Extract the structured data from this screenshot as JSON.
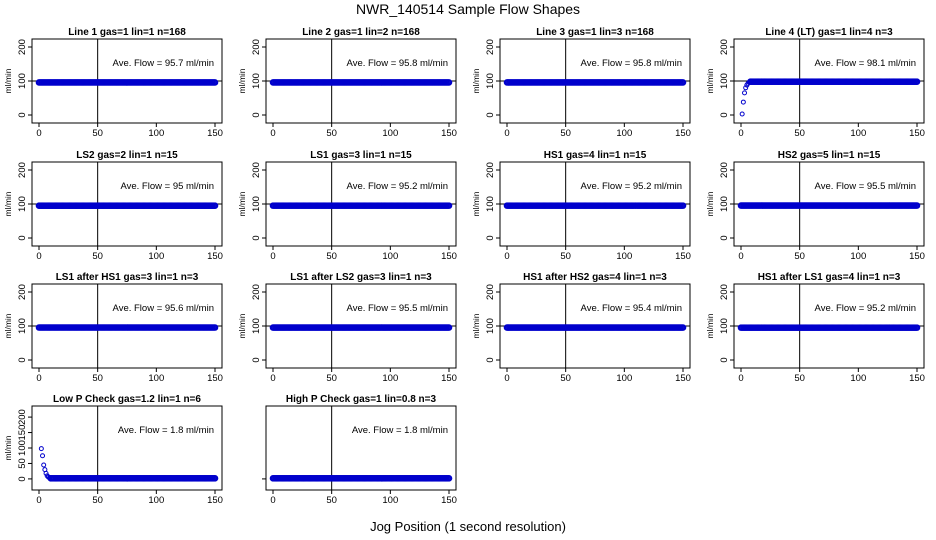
{
  "title": "NWR_140514  Sample Flow Shapes",
  "x_axis_label": "Jog Position (1 second resolution)",
  "colors": {
    "points": "#0000cc",
    "hline": "#000000",
    "vline": "#000000"
  },
  "chart_data": [
    {
      "type": "scatter",
      "title": "Line 1 gas=1 lin=1 n=168",
      "ylabel": "ml/min",
      "annotation": "Ave. Flow = 95.7  ml/min",
      "xlim": [
        0,
        150
      ],
      "ylim": [
        0,
        200
      ],
      "xticks": [
        0,
        50,
        100,
        150
      ],
      "yticks": [
        0,
        100,
        200
      ],
      "hline": 100,
      "vline": 50,
      "shape": "flat",
      "level": 95.7
    },
    {
      "type": "scatter",
      "title": "Line 2 gas=1 lin=2 n=168",
      "ylabel": "ml/min",
      "annotation": "Ave. Flow = 95.8  ml/min",
      "xlim": [
        0,
        150
      ],
      "ylim": [
        0,
        200
      ],
      "xticks": [
        0,
        50,
        100,
        150
      ],
      "yticks": [
        0,
        100,
        200
      ],
      "hline": 100,
      "vline": 50,
      "shape": "flat",
      "level": 95.8
    },
    {
      "type": "scatter",
      "title": "Line 3 gas=1 lin=3 n=168",
      "ylabel": "ml/min",
      "annotation": "Ave. Flow = 95.8  ml/min",
      "xlim": [
        0,
        150
      ],
      "ylim": [
        0,
        200
      ],
      "xticks": [
        0,
        50,
        100,
        150
      ],
      "yticks": [
        0,
        100,
        200
      ],
      "hline": 100,
      "vline": 50,
      "shape": "flat",
      "level": 95.8
    },
    {
      "type": "scatter",
      "title": "Line 4 (LT) gas=1 lin=4 n=3",
      "ylabel": "ml/min",
      "annotation": "Ave. Flow = 98.1  ml/min",
      "xlim": [
        0,
        150
      ],
      "ylim": [
        0,
        200
      ],
      "xticks": [
        0,
        50,
        100,
        150
      ],
      "yticks": [
        0,
        100,
        200
      ],
      "hline": 100,
      "vline": 50,
      "shape": "rise",
      "level": 98.1,
      "early_points": [
        [
          1,
          3
        ],
        [
          2,
          38
        ],
        [
          3,
          65
        ],
        [
          4,
          80
        ],
        [
          5,
          88
        ],
        [
          6,
          93
        ],
        [
          7,
          96
        ]
      ]
    },
    {
      "type": "scatter",
      "title": "LS2 gas=2 lin=1 n=15",
      "ylabel": "ml/min",
      "annotation": "Ave. Flow = 95  ml/min",
      "xlim": [
        0,
        150
      ],
      "ylim": [
        0,
        200
      ],
      "xticks": [
        0,
        50,
        100,
        150
      ],
      "yticks": [
        0,
        100,
        200
      ],
      "hline": 100,
      "vline": 50,
      "shape": "flat",
      "level": 95
    },
    {
      "type": "scatter",
      "title": "LS1 gas=3 lin=1 n=15",
      "ylabel": "ml/min",
      "annotation": "Ave. Flow = 95.2  ml/min",
      "xlim": [
        0,
        150
      ],
      "ylim": [
        0,
        200
      ],
      "xticks": [
        0,
        50,
        100,
        150
      ],
      "yticks": [
        0,
        100,
        200
      ],
      "hline": 100,
      "vline": 50,
      "shape": "flat",
      "level": 95.2
    },
    {
      "type": "scatter",
      "title": "HS1 gas=4 lin=1 n=15",
      "ylabel": "ml/min",
      "annotation": "Ave. Flow = 95.2  ml/min",
      "xlim": [
        0,
        150
      ],
      "ylim": [
        0,
        200
      ],
      "xticks": [
        0,
        50,
        100,
        150
      ],
      "yticks": [
        0,
        100,
        200
      ],
      "hline": 100,
      "vline": 50,
      "shape": "flat",
      "level": 95.2
    },
    {
      "type": "scatter",
      "title": "HS2 gas=5 lin=1 n=15",
      "ylabel": "ml/min",
      "annotation": "Ave. Flow = 95.5  ml/min",
      "xlim": [
        0,
        150
      ],
      "ylim": [
        0,
        200
      ],
      "xticks": [
        0,
        50,
        100,
        150
      ],
      "yticks": [
        0,
        100,
        200
      ],
      "hline": 100,
      "vline": 50,
      "shape": "flat",
      "level": 95.5
    },
    {
      "type": "scatter",
      "title": "LS1 after HS1 gas=3 lin=1 n=3",
      "ylabel": "ml/min",
      "annotation": "Ave. Flow = 95.6  ml/min",
      "xlim": [
        0,
        150
      ],
      "ylim": [
        0,
        200
      ],
      "xticks": [
        0,
        50,
        100,
        150
      ],
      "yticks": [
        0,
        100,
        200
      ],
      "hline": 100,
      "vline": 50,
      "shape": "flat",
      "level": 95.6
    },
    {
      "type": "scatter",
      "title": "LS1 after LS2 gas=3 lin=1 n=3",
      "ylabel": "ml/min",
      "annotation": "Ave. Flow = 95.5  ml/min",
      "xlim": [
        0,
        150
      ],
      "ylim": [
        0,
        200
      ],
      "xticks": [
        0,
        50,
        100,
        150
      ],
      "yticks": [
        0,
        100,
        200
      ],
      "hline": 100,
      "vline": 50,
      "shape": "flat",
      "level": 95.5
    },
    {
      "type": "scatter",
      "title": "HS1 after HS2 gas=4 lin=1 n=3",
      "ylabel": "ml/min",
      "annotation": "Ave. Flow = 95.4  ml/min",
      "xlim": [
        0,
        150
      ],
      "ylim": [
        0,
        200
      ],
      "xticks": [
        0,
        50,
        100,
        150
      ],
      "yticks": [
        0,
        100,
        200
      ],
      "hline": 100,
      "vline": 50,
      "shape": "flat",
      "level": 95.4
    },
    {
      "type": "scatter",
      "title": "HS1 after LS1 gas=4 lin=1 n=3",
      "ylabel": "ml/min",
      "annotation": "Ave. Flow = 95.2  ml/min",
      "xlim": [
        0,
        150
      ],
      "ylim": [
        0,
        200
      ],
      "xticks": [
        0,
        50,
        100,
        150
      ],
      "yticks": [
        0,
        100,
        200
      ],
      "hline": 100,
      "vline": 50,
      "shape": "flat",
      "level": 95.2
    },
    {
      "type": "scatter",
      "title": "Low P Check gas=1.2 lin=1 n=6",
      "ylabel": "ml/min",
      "annotation": "Ave. Flow =  1.8  ml/min",
      "xlim": [
        0,
        150
      ],
      "ylim": [
        -10,
        210
      ],
      "xticks": [
        0,
        50,
        100,
        150
      ],
      "yticks": [
        0,
        50,
        100,
        150,
        200
      ],
      "hline": null,
      "vline": 50,
      "shape": "decay",
      "level": 1.8,
      "early_points": [
        [
          2,
          98
        ],
        [
          3,
          75
        ],
        [
          4,
          45
        ],
        [
          5,
          30
        ],
        [
          6,
          18
        ],
        [
          7,
          10
        ],
        [
          8,
          6
        ],
        [
          9,
          4
        ]
      ]
    },
    {
      "type": "scatter",
      "title": "High P Check gas=1 lin=0.8 n=3",
      "ylabel": "",
      "annotation": "Ave. Flow =  1.8  ml/min",
      "xlim": [
        0,
        150
      ],
      "ylim": [
        -10,
        210
      ],
      "xticks": [
        0,
        50,
        100,
        150
      ],
      "yticks": [],
      "hline": null,
      "vline": 50,
      "shape": "flat",
      "level": 1.8
    }
  ]
}
